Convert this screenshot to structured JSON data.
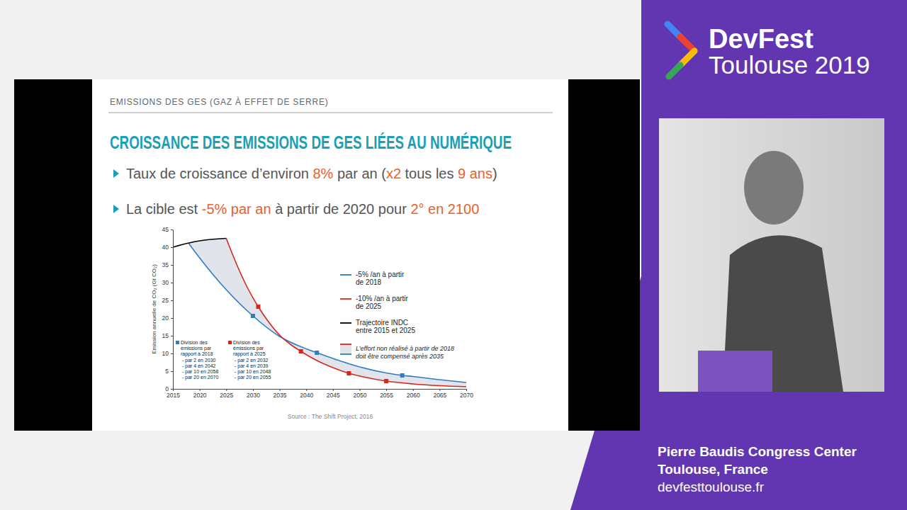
{
  "page": {
    "event": {
      "name": "DevFest",
      "edition": "Toulouse 2019"
    },
    "venue": [
      "Pierre Baudis Congress Center",
      "Toulouse, France"
    ],
    "website": "devfesttoulouse.fr"
  },
  "slide": {
    "section": "EMISSIONS DES GES (GAZ À EFFET DE SERRE)",
    "title": "CROISSANCE DES EMISSIONS DE GES LIÉES AU NUMÉRIQUE",
    "highlight_color": "#e8622a",
    "bullets": [
      [
        {
          "text": "Taux de croissance d’environ ",
          "highlight": false
        },
        {
          "text": "8%",
          "highlight": true
        },
        {
          "text": " par an (",
          "highlight": false
        },
        {
          "text": "x2",
          "highlight": true
        },
        {
          "text": " tous les ",
          "highlight": false
        },
        {
          "text": "9 ans",
          "highlight": true
        },
        {
          "text": ")",
          "highlight": false
        }
      ],
      [
        {
          "text": "La cible est ",
          "highlight": false
        },
        {
          "text": "-5% par an",
          "highlight": true
        },
        {
          "text": " à partir de 2020 pour ",
          "highlight": false
        },
        {
          "text": "2° en 2100",
          "highlight": true
        }
      ]
    ],
    "source": "Source : The Shift Project, 2016"
  },
  "chart_data": {
    "type": "line",
    "y_label": "Emission annuelle de CO₂ (Gt CO₂)",
    "xlim": [
      2015,
      2070
    ],
    "xticks": [
      2015,
      2020,
      2025,
      2030,
      2035,
      2040,
      2045,
      2050,
      2055,
      2060,
      2065,
      2070
    ],
    "ylim": [
      0,
      45
    ],
    "yticks": [
      0,
      5,
      10,
      15,
      20,
      25,
      30,
      35,
      40,
      45
    ],
    "grid": false,
    "legend": "right",
    "series": [
      {
        "name": "-5% /an à partir de 2018",
        "color": "#2e7dbf",
        "marker": "square",
        "x": [
          2018,
          2020,
          2025,
          2030,
          2035,
          2040,
          2042,
          2045,
          2050,
          2055,
          2058,
          2060,
          2065,
          2070
        ],
        "values": [
          41,
          37,
          28,
          20.6,
          14.8,
          11.3,
          10.2,
          8.6,
          6.2,
          4.5,
          3.8,
          3.5,
          2.6,
          1.8
        ],
        "marked_x": [
          2030,
          2042,
          2058
        ]
      },
      {
        "name": "-10% /an à partir de 2025",
        "color": "#d7261e",
        "marker": "square",
        "x": [
          2025,
          2027,
          2029,
          2031,
          2033,
          2035,
          2037,
          2039,
          2042,
          2045,
          2048,
          2051,
          2055,
          2060,
          2065,
          2070
        ],
        "values": [
          42.5,
          35,
          28.5,
          23.2,
          18.8,
          15.2,
          12.6,
          10.6,
          8,
          6,
          4.4,
          3.3,
          2.2,
          1.4,
          0.9,
          0.6
        ],
        "marked_x": [
          2031,
          2039,
          2048,
          2055
        ]
      },
      {
        "name": "Trajectoire INDC entre 2015 et 2025",
        "color": "#000000",
        "marker": "none",
        "x": [
          2015,
          2018,
          2020,
          2025
        ],
        "values": [
          40,
          41.2,
          41.8,
          42.5
        ],
        "marked_x": []
      }
    ],
    "area_label": "L’effort non réalisé à partir de 2018 doit être compensé après 2035",
    "area_color": "#e1e4ea",
    "annotations": [
      {
        "color": "#2e7dbf",
        "heading": "Division des émissions par rapport à 2018",
        "items": [
          "- par 2 en 2030",
          "- par 4 en 2042",
          "- par 10 en 2058",
          "- par 20 en 2070"
        ]
      },
      {
        "color": "#d7261e",
        "heading": "Division des émissions par rapport à 2025",
        "items": [
          "- par 2 en 2032",
          "- par 4 en 2039",
          "- par 10 en 2048",
          "- par 20 en 2055"
        ]
      }
    ]
  }
}
